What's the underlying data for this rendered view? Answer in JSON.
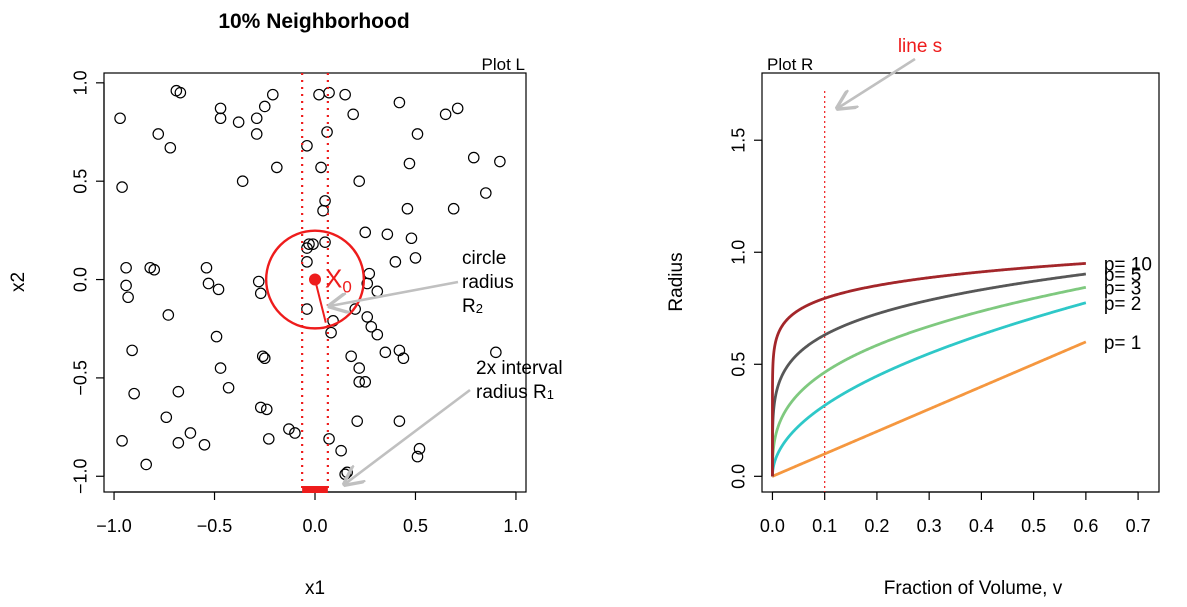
{
  "chart_data": [
    {
      "type": "scatter",
      "title": "10% Neighborhood",
      "corner_label": "Plot L",
      "xlabel": "x1",
      "ylabel": "x2",
      "xlim": [
        -1.05,
        1.05
      ],
      "ylim": [
        -1.08,
        1.05
      ],
      "xticks": [
        -1.0,
        -0.5,
        0.0,
        0.5,
        1.0
      ],
      "yticks": [
        -1.0,
        -0.5,
        0.0,
        0.5,
        1.0
      ],
      "xtick_labels": [
        "−1.0",
        "−0.5",
        "0.0",
        "0.5",
        "1.0"
      ],
      "ytick_labels": [
        "−1.0",
        "−0.5",
        "0.0",
        "0.5",
        "1.0"
      ],
      "points": [
        [
          -0.97,
          0.82
        ],
        [
          -0.96,
          0.47
        ],
        [
          -0.78,
          0.74
        ],
        [
          -0.72,
          0.67
        ],
        [
          -0.69,
          0.96
        ],
        [
          -0.67,
          0.95
        ],
        [
          -0.47,
          0.87
        ],
        [
          -0.47,
          0.82
        ],
        [
          -0.38,
          0.8
        ],
        [
          -0.29,
          0.82
        ],
        [
          -0.29,
          0.74
        ],
        [
          -0.25,
          0.88
        ],
        [
          -0.21,
          0.94
        ],
        [
          -0.19,
          0.57
        ],
        [
          -0.36,
          0.5
        ],
        [
          -0.04,
          0.68
        ],
        [
          0.02,
          0.94
        ],
        [
          0.07,
          0.95
        ],
        [
          0.15,
          0.94
        ],
        [
          0.19,
          0.84
        ],
        [
          0.06,
          0.75
        ],
        [
          0.42,
          0.9
        ],
        [
          0.51,
          0.74
        ],
        [
          0.65,
          0.84
        ],
        [
          0.71,
          0.87
        ],
        [
          0.79,
          0.62
        ],
        [
          0.92,
          0.6
        ],
        [
          0.47,
          0.59
        ],
        [
          0.03,
          0.57
        ],
        [
          0.22,
          0.5
        ],
        [
          0.46,
          0.36
        ],
        [
          0.69,
          0.36
        ],
        [
          0.85,
          0.44
        ],
        [
          0.05,
          0.4
        ],
        [
          0.04,
          0.35
        ],
        [
          -0.03,
          0.18
        ],
        [
          -0.04,
          0.16
        ],
        [
          -0.01,
          0.18
        ],
        [
          0.05,
          0.19
        ],
        [
          0.25,
          0.24
        ],
        [
          0.36,
          0.23
        ],
        [
          0.48,
          0.21
        ],
        [
          -0.04,
          0.09
        ],
        [
          -0.94,
          0.06
        ],
        [
          -0.82,
          0.06
        ],
        [
          -0.8,
          0.05
        ],
        [
          -0.54,
          0.06
        ],
        [
          -0.53,
          -0.02
        ],
        [
          -0.48,
          -0.05
        ],
        [
          -0.28,
          -0.01
        ],
        [
          -0.27,
          -0.07
        ],
        [
          0.27,
          0.03
        ],
        [
          0.26,
          -0.02
        ],
        [
          0.31,
          -0.06
        ],
        [
          0.4,
          0.09
        ],
        [
          0.5,
          0.11
        ],
        [
          -0.94,
          -0.03
        ],
        [
          -0.93,
          -0.09
        ],
        [
          -0.73,
          -0.18
        ],
        [
          -0.04,
          -0.15
        ],
        [
          0.2,
          -0.15
        ],
        [
          0.09,
          -0.21
        ],
        [
          0.26,
          -0.19
        ],
        [
          0.28,
          -0.24
        ],
        [
          0.31,
          -0.28
        ],
        [
          0.08,
          -0.27
        ],
        [
          -0.49,
          -0.29
        ],
        [
          -0.91,
          -0.36
        ],
        [
          -0.26,
          -0.39
        ],
        [
          -0.25,
          -0.4
        ],
        [
          -0.47,
          -0.45
        ],
        [
          -0.43,
          -0.55
        ],
        [
          0.18,
          -0.39
        ],
        [
          0.22,
          -0.45
        ],
        [
          0.22,
          -0.52
        ],
        [
          0.25,
          -0.52
        ],
        [
          0.35,
          -0.37
        ],
        [
          0.42,
          -0.36
        ],
        [
          0.44,
          -0.4
        ],
        [
          0.9,
          -0.37
        ],
        [
          -0.9,
          -0.58
        ],
        [
          -0.68,
          -0.57
        ],
        [
          -0.74,
          -0.7
        ],
        [
          -0.27,
          -0.65
        ],
        [
          -0.24,
          -0.66
        ],
        [
          -0.62,
          -0.78
        ],
        [
          -0.55,
          -0.84
        ],
        [
          -0.68,
          -0.83
        ],
        [
          -0.96,
          -0.82
        ],
        [
          -0.23,
          -0.81
        ],
        [
          -0.13,
          -0.76
        ],
        [
          -0.1,
          -0.78
        ],
        [
          0.21,
          -0.72
        ],
        [
          0.42,
          -0.72
        ],
        [
          0.07,
          -0.81
        ],
        [
          0.13,
          -0.87
        ],
        [
          0.52,
          -0.86
        ],
        [
          0.51,
          -0.9
        ],
        [
          -0.84,
          -0.94
        ],
        [
          0.15,
          -0.99
        ],
        [
          0.16,
          -0.98
        ]
      ],
      "center_point": [
        0.0,
        0.0
      ],
      "center_label": "X",
      "center_label_sub": "0",
      "circle_radius": 0.243,
      "interval_halfwidth": 0.064,
      "annotations": {
        "circle": [
          "circle",
          "radius",
          "R"
        ],
        "circle_sub": "2",
        "interval": [
          "2x interval",
          "radius R"
        ],
        "interval_sub": "1"
      },
      "colors": {
        "highlight": "#ee1c1c",
        "points": "#000000",
        "arrow": "#c0c0c0"
      }
    },
    {
      "type": "line",
      "corner_label": "Plot R",
      "xlabel": "Fraction of Volume, v",
      "ylabel": "Radius",
      "xlim": [
        -0.02,
        0.74
      ],
      "ylim": [
        -0.07,
        1.8
      ],
      "xticks": [
        0.0,
        0.1,
        0.2,
        0.3,
        0.4,
        0.5,
        0.6,
        0.7
      ],
      "yticks": [
        0.0,
        0.5,
        1.0,
        1.5
      ],
      "xtick_labels": [
        "0.0",
        "0.1",
        "0.2",
        "0.3",
        "0.4",
        "0.5",
        "0.6",
        "0.7"
      ],
      "ytick_labels": [
        "0.0",
        "0.5",
        "1.0",
        "1.5"
      ],
      "formula": "radius = v^(1/p)",
      "v_range": [
        0.0,
        0.6
      ],
      "series": [
        {
          "name": "p= 1",
          "p": 1,
          "color": "#f5973f"
        },
        {
          "name": "p= 2",
          "p": 2,
          "color": "#2ec8c8"
        },
        {
          "name": "p= 3",
          "p": 3,
          "color": "#7fc97f"
        },
        {
          "name": "p= 5",
          "p": 5,
          "color": "#575757"
        },
        {
          "name": "p= 10",
          "p": 10,
          "color": "#a3262a"
        }
      ],
      "reference_line": {
        "x": 0.1,
        "label": "line s",
        "color": "#ee1c1c"
      }
    }
  ]
}
